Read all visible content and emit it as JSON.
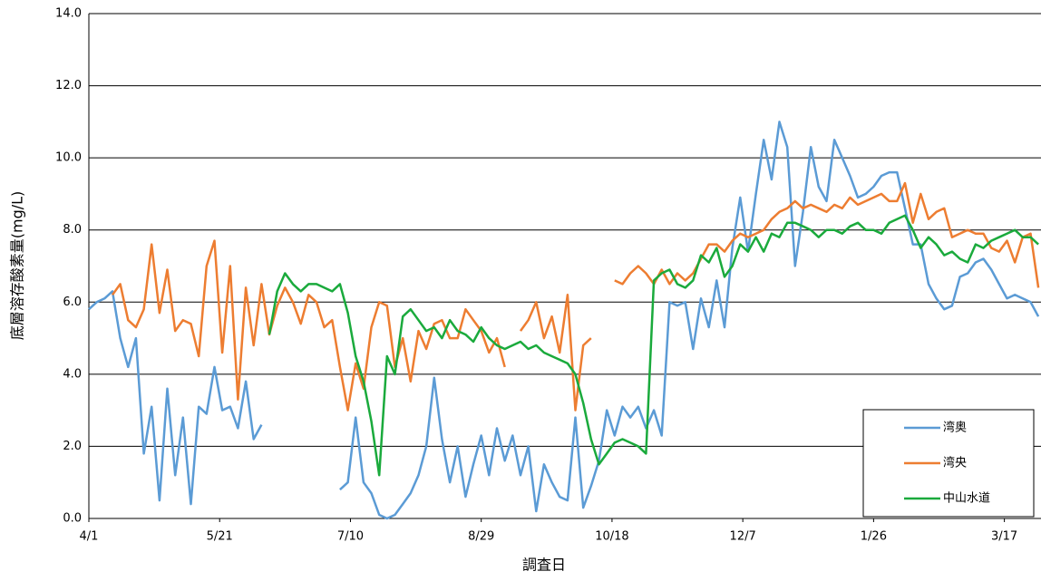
{
  "chart_data": {
    "type": "line",
    "xlabel": "調査日",
    "ylabel": "底層溶存酸素量(mg/L)",
    "x": [
      0,
      3,
      6,
      9,
      12,
      15,
      18,
      21,
      24,
      27,
      30,
      33,
      36,
      39,
      42,
      45,
      48,
      51,
      54,
      57,
      60,
      63,
      66,
      69,
      72,
      75,
      78,
      81,
      84,
      87,
      90,
      93,
      96,
      99,
      102,
      105,
      108,
      111,
      114,
      117,
      120,
      123,
      126,
      129,
      132,
      135,
      138,
      141,
      144,
      147,
      150,
      153,
      156,
      159,
      162,
      165,
      168,
      171,
      174,
      177,
      180,
      183,
      186,
      189,
      192,
      195,
      198,
      201,
      204,
      207,
      210,
      213,
      216,
      219,
      222,
      225,
      228,
      231,
      234,
      237,
      240,
      243,
      246,
      249,
      252,
      255,
      258,
      261,
      264,
      267,
      270,
      273,
      276,
      279,
      282,
      285,
      288,
      291,
      294,
      297,
      300,
      303,
      306,
      309,
      312,
      315,
      318,
      321,
      324,
      327,
      330,
      333,
      336,
      339,
      342,
      345,
      348,
      351,
      354,
      357,
      360,
      363
    ],
    "xlim": [
      0,
      364
    ],
    "xticks": [
      {
        "value": 0,
        "label": "4/1"
      },
      {
        "value": 50,
        "label": "5/21"
      },
      {
        "value": 100,
        "label": "7/10"
      },
      {
        "value": 150,
        "label": "8/29"
      },
      {
        "value": 200,
        "label": "10/18"
      },
      {
        "value": 250,
        "label": "12/7"
      },
      {
        "value": 300,
        "label": "1/26"
      },
      {
        "value": 350,
        "label": "3/17"
      }
    ],
    "ylim": [
      0,
      14
    ],
    "yticks": [
      {
        "value": 0,
        "label": "0.0"
      },
      {
        "value": 2,
        "label": "2.0"
      },
      {
        "value": 4,
        "label": "4.0"
      },
      {
        "value": 6,
        "label": "6.0"
      },
      {
        "value": 8,
        "label": "8.0"
      },
      {
        "value": 10,
        "label": "10.0"
      },
      {
        "value": 12,
        "label": "12.0"
      },
      {
        "value": 14,
        "label": "14.0"
      }
    ],
    "grid": true,
    "legend": "lower right",
    "series": [
      {
        "name": "湾奥",
        "color": "#5b9bd5",
        "values": [
          5.8,
          6.0,
          6.1,
          6.3,
          5.0,
          4.2,
          5.0,
          1.8,
          3.1,
          0.5,
          3.6,
          1.2,
          2.8,
          0.4,
          3.1,
          2.9,
          4.2,
          3.0,
          3.1,
          2.5,
          3.8,
          2.2,
          2.6,
          null,
          null,
          null,
          null,
          null,
          null,
          null,
          null,
          null,
          0.8,
          1.0,
          2.8,
          1.0,
          0.7,
          0.1,
          0.0,
          0.1,
          0.4,
          0.7,
          1.2,
          2.0,
          3.9,
          2.2,
          1.0,
          2.0,
          0.6,
          1.5,
          2.3,
          1.2,
          2.5,
          1.6,
          2.3,
          1.2,
          2.0,
          0.2,
          1.5,
          1.0,
          0.6,
          0.5,
          2.8,
          0.3,
          0.9,
          1.6,
          3.0,
          2.3,
          3.1,
          2.8,
          3.1,
          2.5,
          3.0,
          2.3,
          6.0,
          5.9,
          6.0,
          4.7,
          6.1,
          5.3,
          6.6,
          5.3,
          7.5,
          8.9,
          7.4,
          9.0,
          10.5,
          9.4,
          11.0,
          10.3,
          7.0,
          8.5,
          10.3,
          9.2,
          8.8,
          10.5,
          10.0,
          9.5,
          8.9,
          9.0,
          9.2,
          9.5,
          9.6,
          9.6,
          8.6,
          7.6,
          7.6,
          6.5,
          6.1,
          5.8,
          5.9,
          6.7,
          6.8,
          7.1,
          7.2,
          6.9,
          6.5,
          6.1,
          6.2,
          6.1,
          6.0,
          5.6
        ]
      },
      {
        "name": "湾央",
        "color": "#ed7d31",
        "values": [
          null,
          null,
          null,
          6.2,
          6.5,
          5.5,
          5.3,
          5.8,
          7.6,
          5.7,
          6.9,
          5.2,
          5.5,
          5.4,
          4.5,
          7.0,
          7.7,
          4.6,
          7.0,
          3.3,
          6.4,
          4.8,
          6.5,
          5.1,
          5.9,
          6.4,
          6.0,
          5.4,
          6.2,
          6.0,
          5.3,
          5.5,
          4.2,
          3.0,
          4.3,
          3.6,
          5.3,
          6.0,
          5.9,
          4.2,
          5.0,
          3.8,
          5.2,
          4.7,
          5.4,
          5.5,
          5.0,
          5.0,
          5.8,
          5.5,
          5.2,
          4.6,
          5.0,
          4.2,
          null,
          5.2,
          5.5,
          6.0,
          5.0,
          5.6,
          4.6,
          6.2,
          3.0,
          4.8,
          5.0,
          null,
          null,
          6.6,
          6.5,
          6.8,
          7.0,
          6.8,
          6.5,
          6.9,
          6.5,
          6.8,
          6.6,
          6.8,
          7.2,
          7.6,
          7.6,
          7.4,
          7.7,
          7.9,
          7.8,
          7.9,
          8.0,
          8.3,
          8.5,
          8.6,
          8.8,
          8.6,
          8.7,
          8.6,
          8.5,
          8.7,
          8.6,
          8.9,
          8.7,
          8.8,
          8.9,
          9.0,
          8.8,
          8.8,
          9.3,
          8.2,
          9.0,
          8.3,
          8.5,
          8.6,
          7.8,
          7.9,
          8.0,
          7.9,
          7.9,
          7.5,
          7.4,
          7.7,
          7.1,
          7.8,
          7.9,
          6.4
        ]
      },
      {
        "name": "中山水道",
        "color": "#1aaa3c",
        "values": [
          null,
          null,
          null,
          null,
          null,
          null,
          null,
          null,
          null,
          null,
          null,
          null,
          null,
          null,
          null,
          null,
          null,
          null,
          null,
          null,
          null,
          null,
          null,
          5.1,
          6.3,
          6.8,
          6.5,
          6.3,
          6.5,
          6.5,
          6.4,
          6.3,
          6.5,
          5.7,
          4.5,
          3.8,
          2.7,
          1.2,
          4.5,
          4.0,
          5.6,
          5.8,
          5.5,
          5.2,
          5.3,
          5.0,
          5.5,
          5.2,
          5.1,
          4.9,
          5.3,
          5.0,
          4.8,
          4.7,
          4.8,
          4.9,
          4.7,
          4.8,
          4.6,
          4.5,
          4.4,
          4.3,
          4.0,
          3.2,
          2.2,
          1.5,
          1.8,
          2.1,
          2.2,
          2.1,
          2.0,
          1.8,
          6.6,
          6.8,
          6.9,
          6.5,
          6.4,
          6.6,
          7.3,
          7.1,
          7.5,
          6.7,
          7.0,
          7.6,
          7.4,
          7.8,
          7.4,
          7.9,
          7.8,
          8.2,
          8.2,
          8.1,
          8.0,
          7.8,
          8.0,
          8.0,
          7.9,
          8.1,
          8.2,
          8.0,
          8.0,
          7.9,
          8.2,
          8.3,
          8.4,
          8.0,
          7.5,
          7.8,
          7.6,
          7.3,
          7.4,
          7.2,
          7.1,
          7.6,
          7.5,
          7.7,
          7.8,
          7.9,
          8.0,
          7.8,
          7.8,
          7.6
        ]
      }
    ]
  }
}
